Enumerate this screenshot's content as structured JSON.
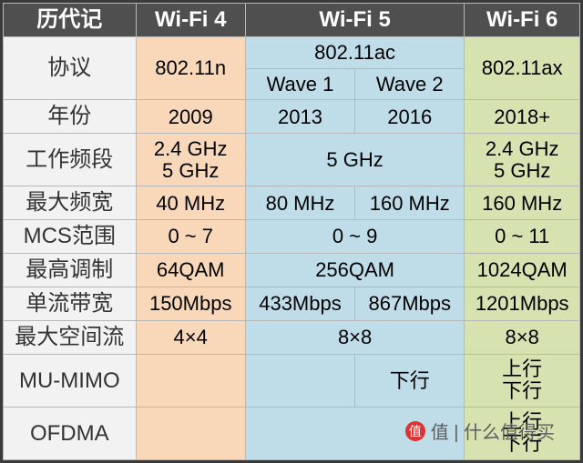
{
  "header": {
    "h0": "历代记",
    "h1": "Wi-Fi 4",
    "h2": "Wi-Fi 5",
    "h3": "Wi-Fi 6"
  },
  "rows": {
    "protocol": {
      "label": "协议",
      "wifi4": "802.11n",
      "wifi5_top": "802.11ac",
      "wifi5_w1": "Wave 1",
      "wifi5_w2": "Wave 2",
      "wifi6": "802.11ax"
    },
    "year": {
      "label": "年份",
      "wifi4": "2009",
      "wifi5a": "2013",
      "wifi5b": "2016",
      "wifi6": "2018+"
    },
    "band": {
      "label": "工作频段",
      "wifi4": "2.4 GHz\n5 GHz",
      "wifi5": "5 GHz",
      "wifi6": "2.4 GHz\n5 GHz"
    },
    "bw": {
      "label": "最大频宽",
      "wifi4": "40 MHz",
      "wifi5a": "80 MHz",
      "wifi5b": "160 MHz",
      "wifi6": "160 MHz"
    },
    "mcs": {
      "label": "MCS范围",
      "wifi4": "0 ~ 7",
      "wifi5": "0 ~ 9",
      "wifi6": "0 ~ 11"
    },
    "mod": {
      "label": "最高调制",
      "wifi4": "64QAM",
      "wifi5": "256QAM",
      "wifi6": "1024QAM"
    },
    "stream_bw": {
      "label": "单流带宽",
      "wifi4": "150Mbps",
      "wifi5a": "433Mbps",
      "wifi5b": "867Mbps",
      "wifi6": "1201Mbps"
    },
    "spatial": {
      "label": "最大空间流",
      "wifi4": "4×4",
      "wifi5": "8×8",
      "wifi6": "8×8"
    },
    "mumimo": {
      "label": "MU-MIMO",
      "wifi4": "",
      "wifi5a": "",
      "wifi5b": "下行",
      "wifi6": "上行\n下行"
    },
    "ofdma": {
      "label": "OFDMA",
      "wifi4": "",
      "wifi5": "",
      "wifi6": "上行\n下行"
    }
  },
  "colors": {
    "header_bg": "#4f4f4f",
    "label_bg": "#f2f2f2",
    "col1": "#f8d8b8",
    "col2": "#bedde8",
    "col3": "#d6e2b0"
  },
  "watermark": "值 | 什么值得买"
}
